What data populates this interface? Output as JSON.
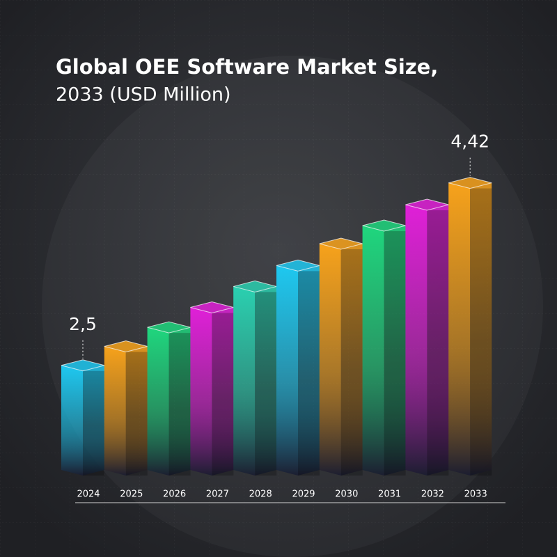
{
  "chart_data": {
    "type": "bar",
    "title": "Global OEE Software Market Size,",
    "subtitle": "2033 (USD Million)",
    "categories": [
      "2024",
      "2025",
      "2026",
      "2027",
      "2028",
      "2029",
      "2030",
      "2031",
      "2032",
      "2033"
    ],
    "values": [
      2.5,
      2.7,
      2.9,
      3.11,
      3.33,
      3.55,
      3.78,
      3.97,
      4.19,
      4.42
    ],
    "value_labels": [
      "2,5",
      null,
      null,
      null,
      null,
      null,
      null,
      null,
      null,
      "4,42"
    ],
    "colors": [
      "#1ec8f0",
      "#f7a21b",
      "#1fd67e",
      "#e020d8",
      "#2ad0b0",
      "#1ec8f0",
      "#f7a21b",
      "#1fd67e",
      "#e020d8",
      "#f7a21b"
    ],
    "ylim": [
      1.4,
      4.6
    ]
  }
}
